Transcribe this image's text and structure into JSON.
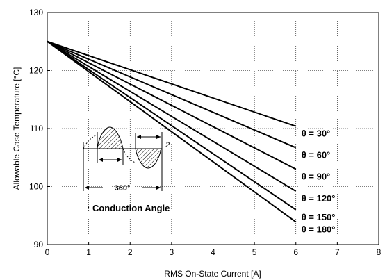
{
  "chart_data": {
    "type": "line",
    "xlabel": "RMS On-State Current [A]",
    "ylabel": "Allowable Case Temperature [°C]",
    "xlim": [
      0,
      8
    ],
    "ylim": [
      90,
      130
    ],
    "x_ticks": [
      "0",
      "1",
      "2",
      "3",
      "4",
      "5",
      "6",
      "7",
      "8"
    ],
    "y_ticks": [
      "90",
      "100",
      "110",
      "120",
      "130"
    ],
    "grid": "dotted",
    "series": [
      {
        "name": "θ = 30°",
        "x": [
          0,
          6
        ],
        "y": [
          125,
          110.4
        ]
      },
      {
        "name": "θ = 60°",
        "x": [
          0,
          6
        ],
        "y": [
          125,
          106.7
        ]
      },
      {
        "name": "θ = 90°",
        "x": [
          0,
          6
        ],
        "y": [
          125,
          103.0
        ]
      },
      {
        "name": "θ = 120°",
        "x": [
          0,
          6
        ],
        "y": [
          125,
          99.2
        ]
      },
      {
        "name": "θ = 150°",
        "x": [
          0,
          6
        ],
        "y": [
          125,
          96.0
        ]
      },
      {
        "name": "θ = 180°",
        "x": [
          0,
          6
        ],
        "y": [
          125,
          93.9
        ]
      }
    ],
    "inset": {
      "period_label": "360°",
      "legend": ": Conduction Angle",
      "marker": "2"
    }
  }
}
